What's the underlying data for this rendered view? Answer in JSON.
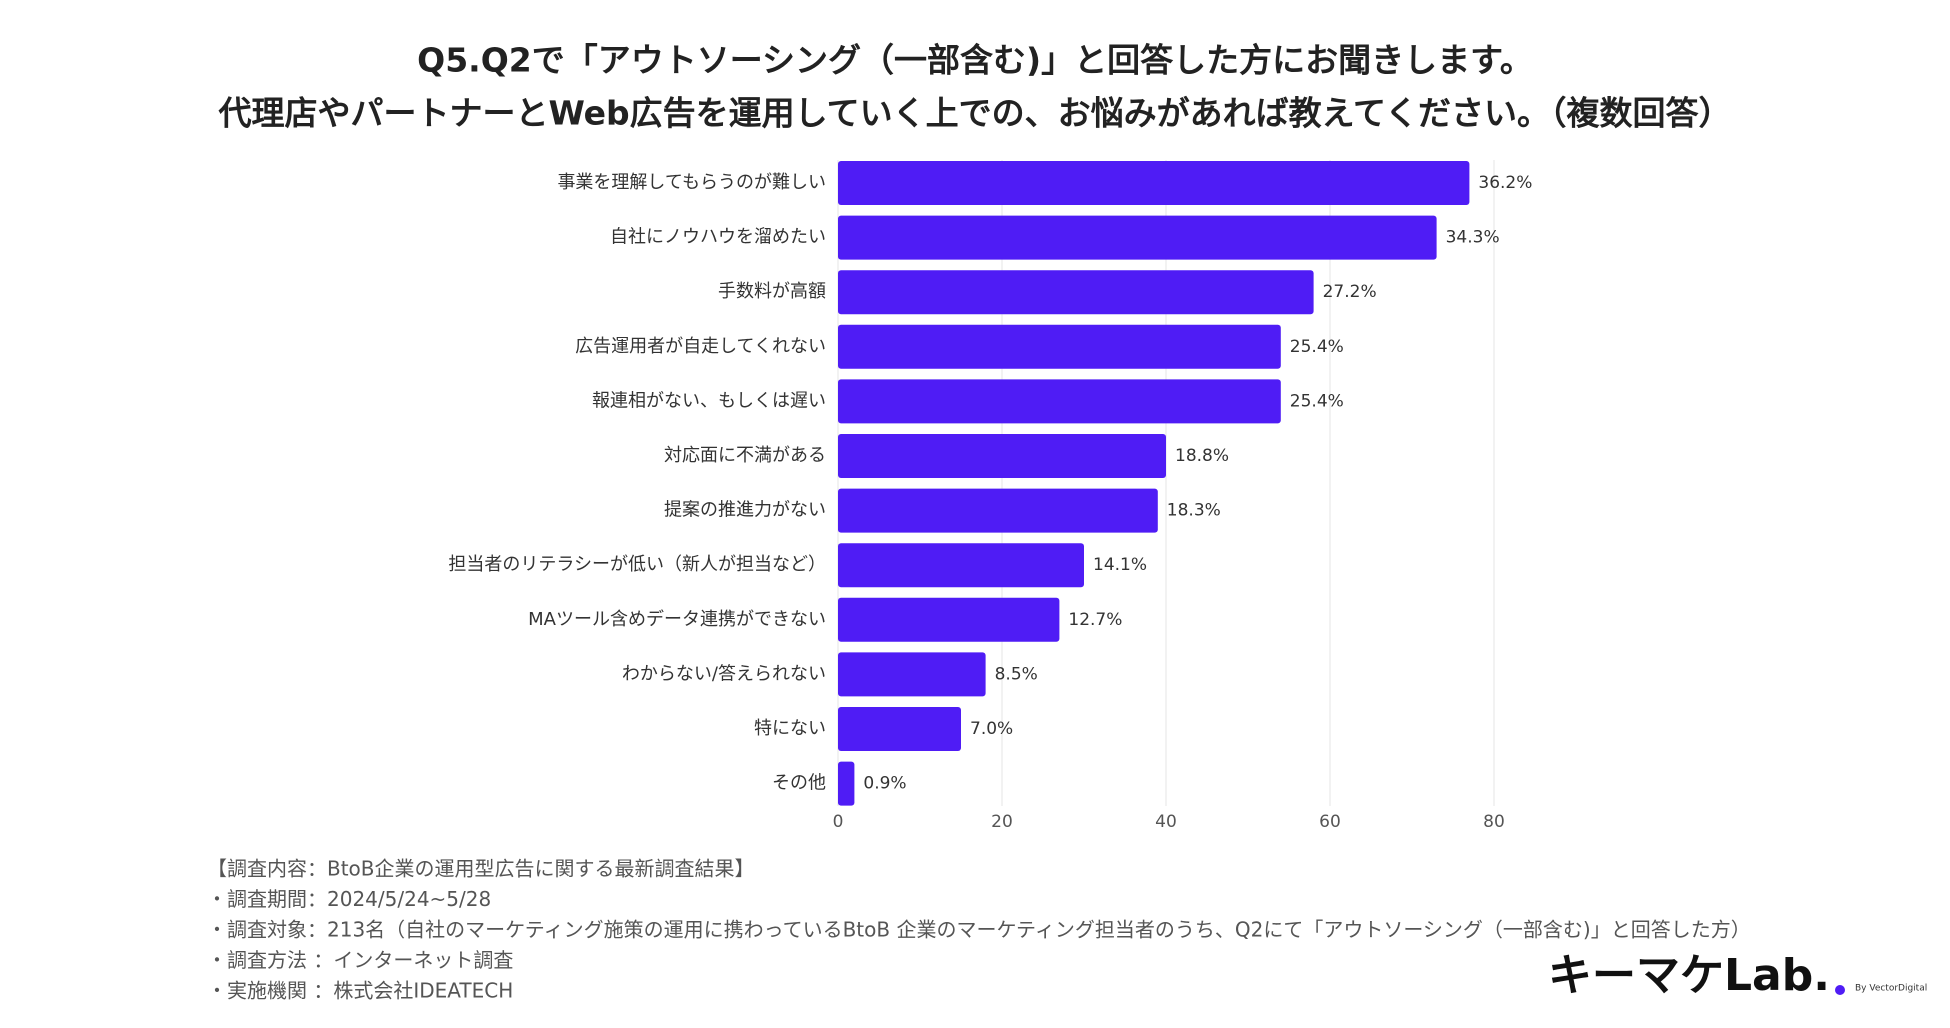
{
  "chart_data": {
    "type": "bar",
    "orientation": "horizontal",
    "title": [
      "Q5.Q2で「アウトソーシング（一部含む)」と回答した方にお聞きします。",
      "代理店やパートナーとWeb広告を運用していく上での、お悩みがあれば教えてください。（複数回答）"
    ],
    "categories": [
      "事業を理解してもらうのが難しい",
      "自社にノウハウを溜めたい",
      "手数料が高額",
      "広告運用者が自走してくれない",
      "報連相がない、もしくは遅い",
      "対応面に不満がある",
      "提案の推進力がない",
      "担当者のリテラシーが低い（新人が担当など）",
      "MAツール含めデータ連携ができない",
      "わからない/答えられない",
      "特にない",
      "その他"
    ],
    "values": [
      77,
      73,
      58,
      54,
      54,
      40,
      39,
      30,
      27,
      18,
      15,
      2
    ],
    "value_labels": [
      "36.2%",
      "34.3%",
      "27.2%",
      "25.4%",
      "25.4%",
      "18.8%",
      "18.3%",
      "14.1%",
      "12.7%",
      "8.5%",
      "7.0%",
      "0.9%"
    ],
    "color": "#4f1cf5",
    "xlim": [
      0,
      80
    ],
    "xticks": [
      0,
      20,
      40,
      60,
      80
    ],
    "grid": true,
    "notes": [
      "【調査内容：BtoB企業の運用型広告に関する最新調査結果】",
      "・調査期間：2024/5/24~5/28",
      "・調査対象：213名（自社のマーケティング施策の運用に携わっているBtoB 企業のマーケティング担当者のうち、Q2にて「アウトソーシング（一部含む)」と回答した方）",
      "・調査方法 ：インターネット調査",
      "・実施機関 ：株式会社IDEATECH"
    ],
    "logo": {
      "text": "キーマケLab.",
      "byline": "By VectorDigital"
    }
  }
}
